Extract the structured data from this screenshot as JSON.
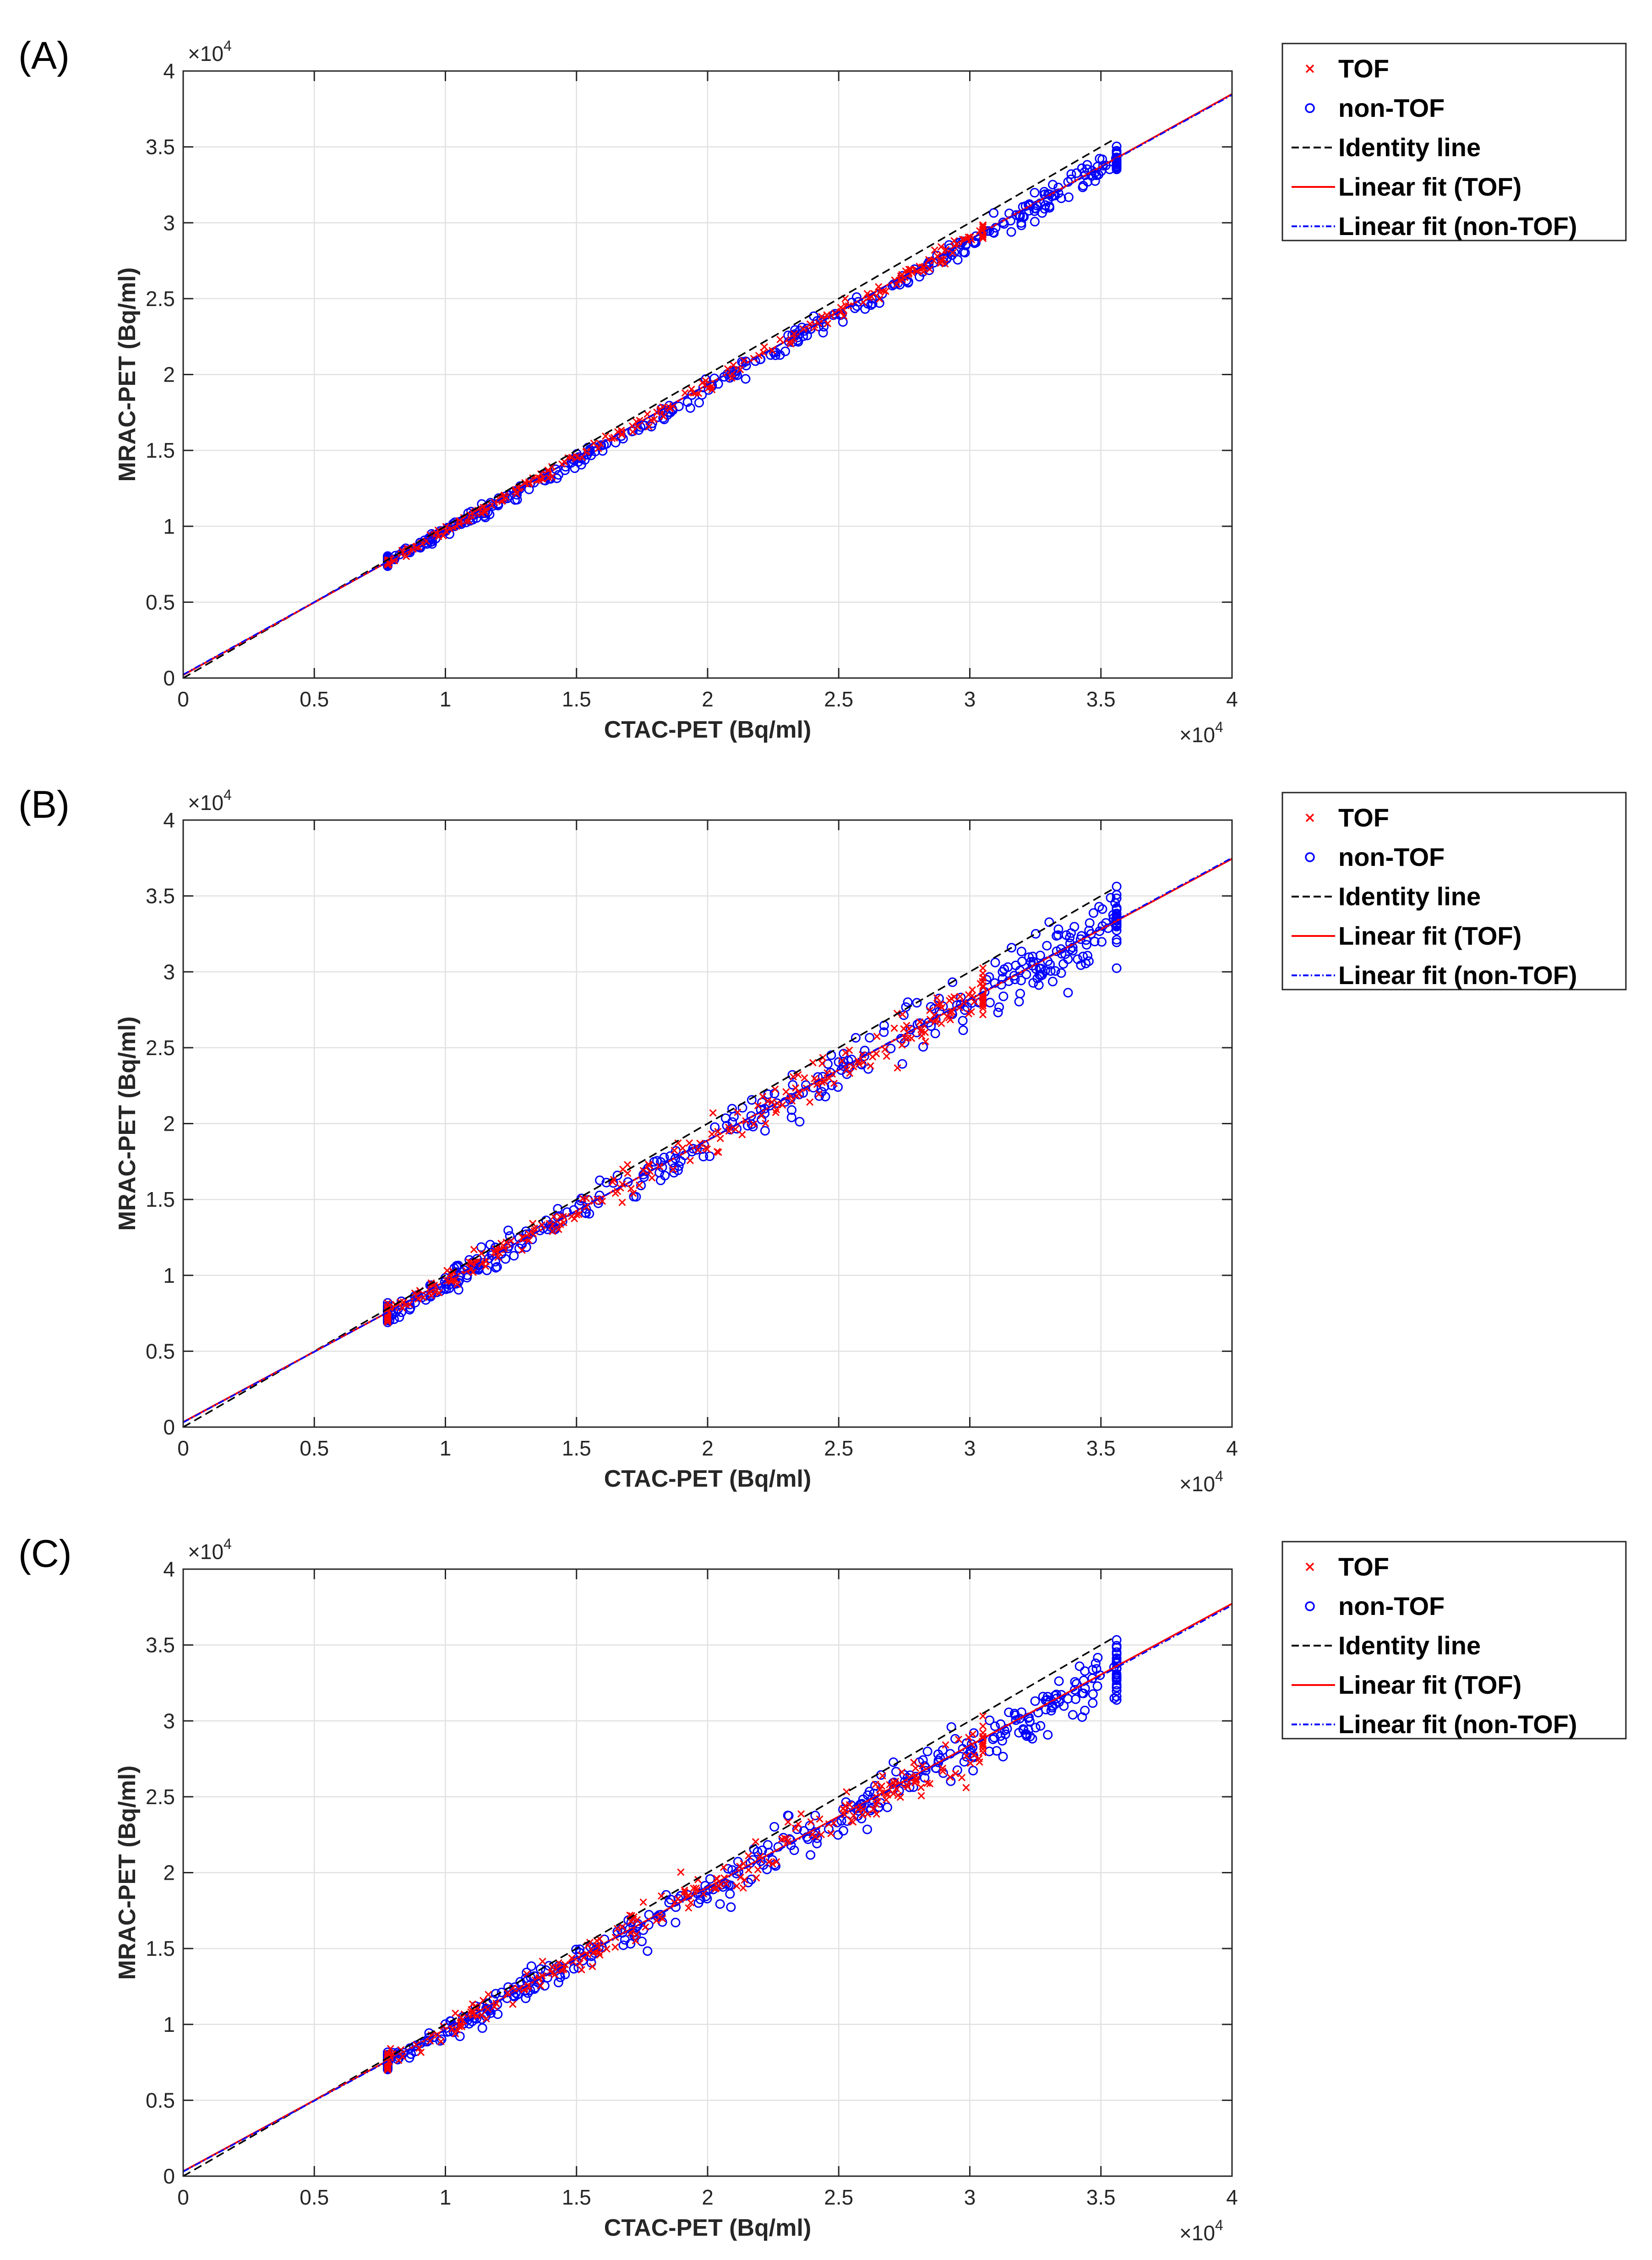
{
  "colors": {
    "tof": "#ff0000",
    "nontof": "#0000ff",
    "identity": "#000000",
    "grid": "#e1e1e1",
    "axis": "#262626"
  },
  "chart_data": [
    {
      "panel_label": "(A)",
      "type": "scatter",
      "xlabel": "CTAC-PET (Bq/ml)",
      "ylabel": "MRAC-PET (Bq/ml)",
      "xlim": [
        0,
        40000
      ],
      "ylim": [
        0,
        40000
      ],
      "xticks": [
        0,
        0.5,
        1,
        1.5,
        2,
        2.5,
        3,
        3.5,
        4
      ],
      "yticks": [
        0,
        0.5,
        1,
        1.5,
        2,
        2.5,
        3,
        3.5,
        4
      ],
      "x_multiplier": "×10",
      "y_multiplier": "×10",
      "multiplier_exponent": "4",
      "grid": true,
      "legend_position": "outside-right-top",
      "legend": [
        "TOF",
        "non-TOF",
        "Identity line",
        "Linear fit (TOF)",
        "Linear fit (non-TOF)"
      ],
      "identity_range": [
        0,
        35500
      ],
      "fit_tof": {
        "slope": 0.957,
        "intercept": 200,
        "x_range": [
          0,
          40000
        ]
      },
      "fit_nontof": {
        "slope": 0.955,
        "intercept": 230,
        "x_range": [
          0,
          40000
        ]
      },
      "scatter_generation": {
        "x_start": 7800,
        "x_end": 35600,
        "tof_count": 260,
        "nontof_count": 420,
        "tof_noise": 350,
        "nontof_noise": 400,
        "tof_x_max": 30500
      },
      "scatter_shape": "bend",
      "seed": 11
    },
    {
      "panel_label": "(B)",
      "type": "scatter",
      "xlabel": "CTAC-PET (Bq/ml)",
      "ylabel": "MRAC-PET (Bq/ml)",
      "xlim": [
        0,
        40000
      ],
      "ylim": [
        0,
        40000
      ],
      "xticks": [
        0,
        0.5,
        1,
        1.5,
        2,
        2.5,
        3,
        3.5,
        4
      ],
      "yticks": [
        0,
        0.5,
        1,
        1.5,
        2,
        2.5,
        3,
        3.5,
        4
      ],
      "x_multiplier": "×10",
      "y_multiplier": "×10",
      "multiplier_exponent": "4",
      "grid": true,
      "legend_position": "outside-right-top",
      "legend": [
        "TOF",
        "non-TOF",
        "Identity line",
        "Linear fit (TOF)",
        "Linear fit (non-TOF)"
      ],
      "identity_range": [
        0,
        35500
      ],
      "fit_tof": {
        "slope": 0.928,
        "intercept": 330,
        "x_range": [
          0,
          40000
        ]
      },
      "fit_nontof": {
        "slope": 0.93,
        "intercept": 310,
        "x_range": [
          0,
          40000
        ]
      },
      "scatter_generation": {
        "x_start": 7800,
        "x_end": 35600,
        "tof_count": 280,
        "nontof_count": 420,
        "tof_noise": 850,
        "nontof_noise": 900,
        "tof_x_max": 30500
      },
      "scatter_shape": "linear",
      "seed": 23
    },
    {
      "panel_label": "(C)",
      "type": "scatter",
      "xlabel": "CTAC-PET (Bq/ml)",
      "ylabel": "MRAC-PET (Bq/ml)",
      "xlim": [
        0,
        40000
      ],
      "ylim": [
        0,
        40000
      ],
      "xticks": [
        0,
        0.5,
        1,
        1.5,
        2,
        2.5,
        3,
        3.5,
        4
      ],
      "yticks": [
        0,
        0.5,
        1,
        1.5,
        2,
        2.5,
        3,
        3.5,
        4
      ],
      "x_multiplier": "×10",
      "y_multiplier": "×10",
      "multiplier_exponent": "4",
      "grid": true,
      "legend_position": "outside-right-top",
      "legend": [
        "TOF",
        "non-TOF",
        "Identity line",
        "Linear fit (TOF)",
        "Linear fit (non-TOF)"
      ],
      "identity_range": [
        0,
        35500
      ],
      "fit_tof": {
        "slope": 0.935,
        "intercept": 320,
        "x_range": [
          0,
          40000
        ]
      },
      "fit_nontof": {
        "slope": 0.933,
        "intercept": 300,
        "x_range": [
          0,
          40000
        ]
      },
      "scatter_generation": {
        "x_start": 7800,
        "x_end": 35600,
        "tof_count": 280,
        "nontof_count": 420,
        "tof_noise": 950,
        "nontof_noise": 950,
        "tof_x_max": 30500
      },
      "scatter_shape": "linear",
      "seed": 37
    }
  ]
}
